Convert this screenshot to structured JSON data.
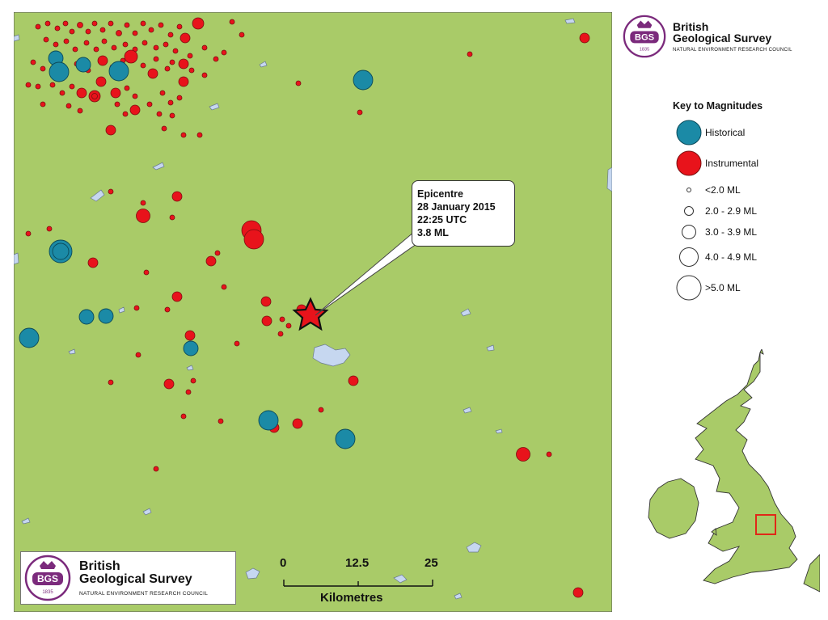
{
  "brand": {
    "name_line1": "British",
    "name_line2": "Geological Survey",
    "council": "NATURAL ENVIRONMENT RESEARCH COUNCIL",
    "badge": "BGS",
    "year": "1835"
  },
  "callout": {
    "line1": "Epicentre",
    "line2": "28 January 2015",
    "line3": "22:25 UTC",
    "line4": "3.8 ML"
  },
  "key": {
    "title": "Key to Magnitudes",
    "historical": "Historical",
    "instrumental": "Instrumental",
    "mag1": "<2.0 ML",
    "mag2": "2.0 - 2.9 ML",
    "mag3": "3.0 - 3.9 ML",
    "mag4": "4.0 - 4.9 ML",
    "mag5": ">5.0 ML"
  },
  "scale": {
    "tick0": "0",
    "tick1": "12.5",
    "tick2": "25",
    "unit": "Kilometres"
  },
  "colors": {
    "land": "#a9cb68",
    "water": "#c6d7f0",
    "historical": "#1b8aa6",
    "instrumental": "#e8131b",
    "sea": "#ffffff",
    "inset_box": "#e02818",
    "brand_purple": "#7b2a7c"
  }
}
